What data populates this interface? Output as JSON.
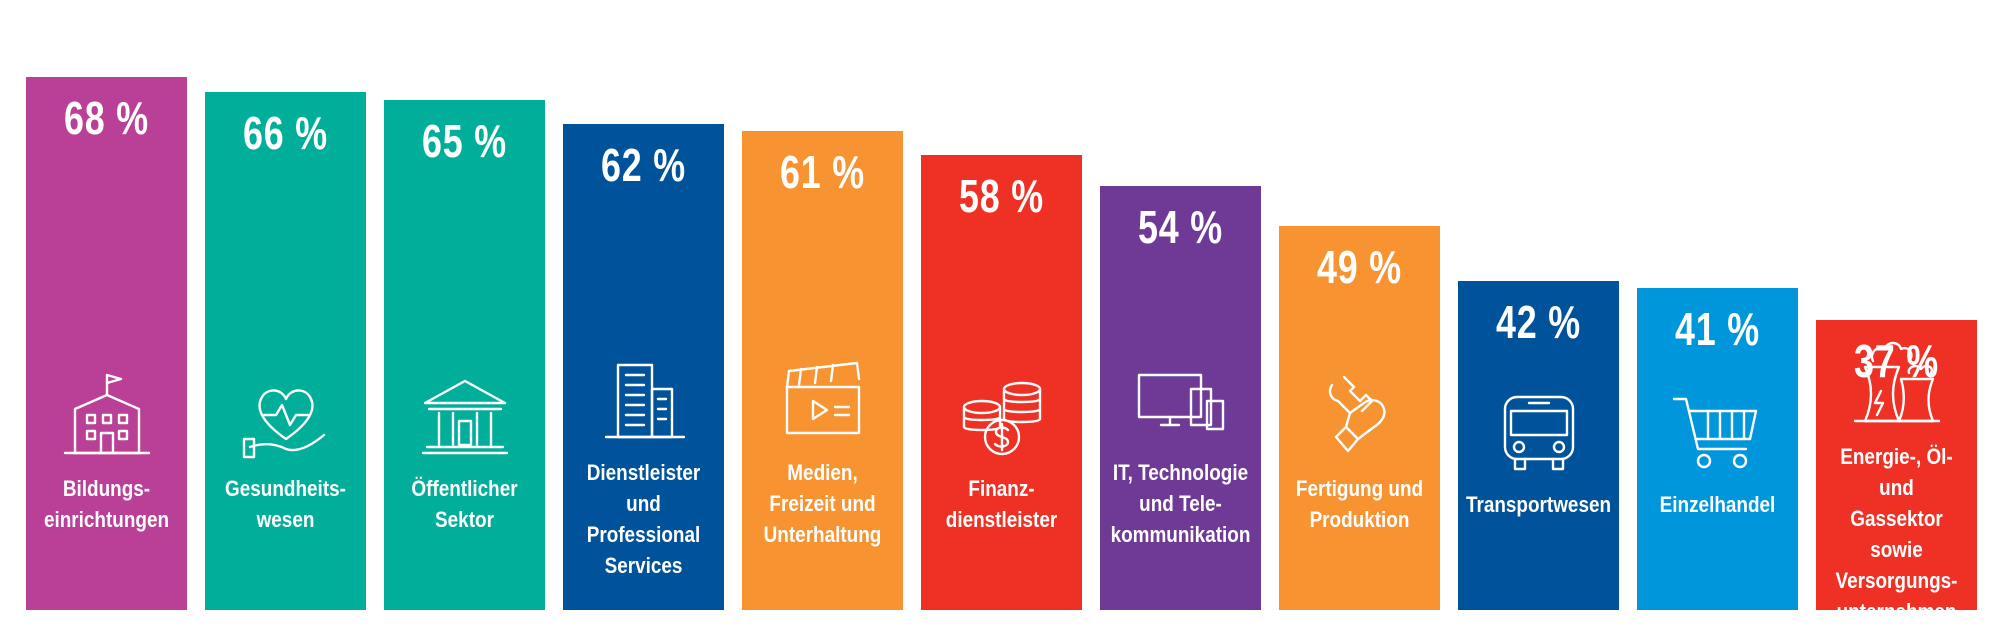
{
  "chart_data": {
    "type": "bar",
    "ylim": [
      0,
      70
    ],
    "categories": [
      "Bildungs-\neinrichtungen",
      "Gesundheits-\nwesen",
      "Öffentlicher\nSektor",
      "Dienstleister und\nProfessional\nServices",
      "Medien,\nFreizeit und\nUnterhaltung",
      "Finanz-\ndienstleister",
      "IT, Technologie\nund Tele-\nkommunikation",
      "Fertigung und\nProduktion",
      "Transportwesen",
      "Einzelhandel",
      "Energie-, Öl- und\nGassektor sowie\nVersorgungs-\nunternehmen"
    ],
    "values": [
      68,
      66,
      65,
      62,
      61,
      58,
      54,
      49,
      42,
      41,
      37
    ],
    "data_labels": [
      "68 %",
      "66 %",
      "65 %",
      "62 %",
      "61 %",
      "58 %",
      "54 %",
      "49 %",
      "42 %",
      "41 %",
      "37 %"
    ],
    "colors": [
      "#B93F97",
      "#00AE9A",
      "#00AE9A",
      "#00529B",
      "#F79331",
      "#EE3124",
      "#6E3A96",
      "#F79331",
      "#00529B",
      "#0096DB",
      "#EE3124"
    ],
    "icons": [
      "school-building-icon",
      "heart-hand-icon",
      "government-building-icon",
      "office-tower-icon",
      "clapperboard-icon",
      "coins-icon",
      "devices-icon",
      "wrench-hand-icon",
      "bus-icon",
      "shopping-cart-icon",
      "power-plant-icon"
    ]
  }
}
